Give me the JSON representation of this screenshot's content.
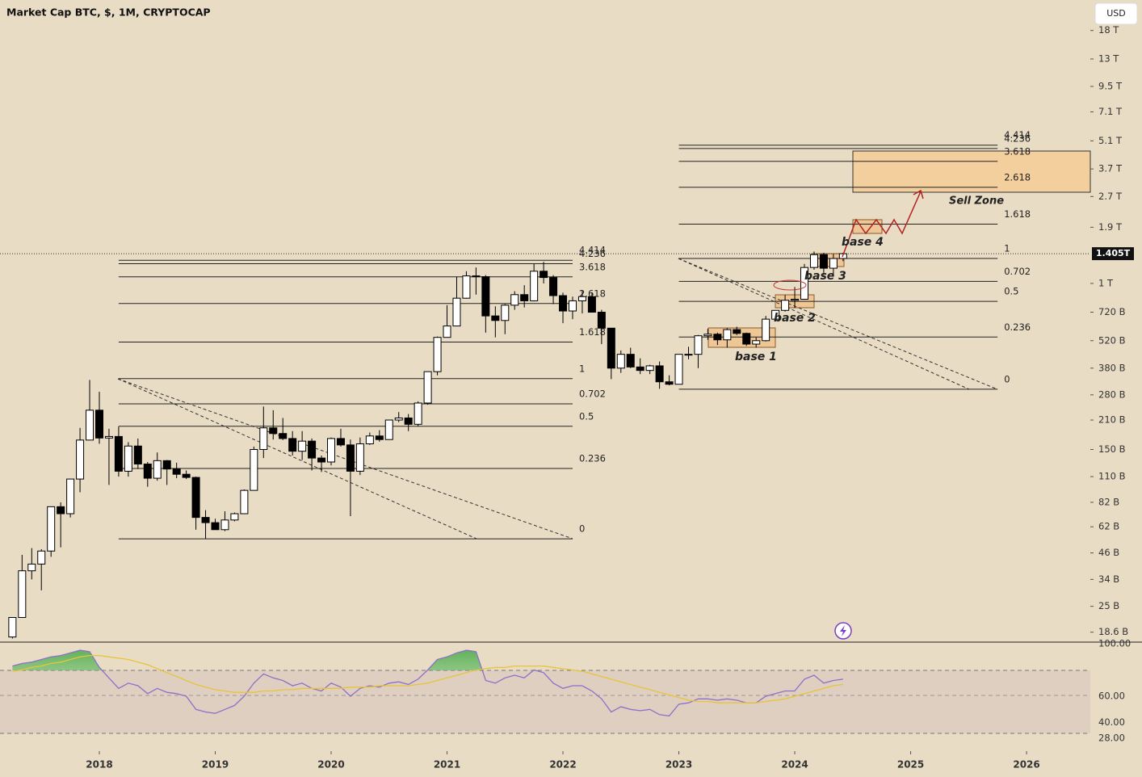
{
  "chart_data": [
    {
      "type": "candlestick",
      "title": "Market Cap BTC, $, 1M, CRYPTOCAP",
      "currency": "USD",
      "log_scale": true,
      "color_up": "#ffffff",
      "color_down": "#000000",
      "x": [
        "2017-04",
        "2017-05",
        "2017-06",
        "2017-07",
        "2017-08",
        "2017-09",
        "2017-10",
        "2017-11",
        "2017-12",
        "2018-01",
        "2018-02",
        "2018-03",
        "2018-04",
        "2018-05",
        "2018-06",
        "2018-07",
        "2018-08",
        "2018-09",
        "2018-10",
        "2018-11",
        "2018-12",
        "2019-01",
        "2019-02",
        "2019-03",
        "2019-04",
        "2019-05",
        "2019-06",
        "2019-07",
        "2019-08",
        "2019-09",
        "2019-10",
        "2019-11",
        "2019-12",
        "2020-01",
        "2020-02",
        "2020-03",
        "2020-04",
        "2020-05",
        "2020-06",
        "2020-07",
        "2020-08",
        "2020-09",
        "2020-10",
        "2020-11",
        "2020-12",
        "2021-01",
        "2021-02",
        "2021-03",
        "2021-04",
        "2021-05",
        "2021-06",
        "2021-07",
        "2021-08",
        "2021-09",
        "2021-10",
        "2021-11",
        "2021-12",
        "2022-01",
        "2022-02",
        "2022-03",
        "2022-04",
        "2022-05",
        "2022-06",
        "2022-07",
        "2022-08",
        "2022-09",
        "2022-10",
        "2022-11",
        "2022-12",
        "2023-01",
        "2023-02",
        "2023-03",
        "2023-04",
        "2023-05",
        "2023-06",
        "2023-07",
        "2023-08",
        "2023-09",
        "2023-10",
        "2023-11",
        "2023-12",
        "2024-01",
        "2024-02",
        "2024-03",
        "2024-04",
        "2024-05",
        "2024-06"
      ],
      "open": [
        17.6,
        22,
        37.5,
        40.5,
        47,
        78,
        72,
        107,
        167,
        235,
        171,
        174,
        117,
        156,
        127,
        108,
        132,
        120,
        113,
        109,
        69,
        65,
        60,
        67,
        72,
        94,
        150,
        192,
        180,
        170,
        147,
        165,
        136,
        130,
        170,
        158,
        117,
        160,
        175,
        168,
        210,
        215,
        200,
        255,
        365,
        540,
        615,
        845,
        1090,
        1080,
        690,
        655,
        780,
        880,
        820,
        1150,
        1070,
        870,
        730,
        820,
        860,
        720,
        600,
        380,
        445,
        385,
        370,
        390,
        325,
        316,
        445,
        445,
        550,
        560,
        525,
        590,
        565,
        500,
        520,
        665,
        735,
        825,
        835,
        1200,
        1390,
        1190,
        1330
      ],
      "high": [
        22,
        45,
        48.6,
        48,
        78,
        82,
        107,
        192,
        332,
        290,
        190,
        195,
        163,
        170,
        130,
        145,
        133,
        129,
        118,
        110,
        75,
        68,
        74,
        73,
        95,
        155,
        245,
        235,
        215,
        185,
        185,
        170,
        140,
        172,
        190,
        168,
        172,
        182,
        187,
        210,
        230,
        225,
        260,
        365,
        545,
        780,
        1080,
        1150,
        1200,
        1100,
        770,
        790,
        915,
        980,
        1250,
        1280,
        1100,
        900,
        860,
        920,
        900,
        740,
        600,
        465,
        480,
        425,
        395,
        410,
        350,
        445,
        485,
        555,
        595,
        570,
        600,
        610,
        570,
        540,
        690,
        735,
        875,
        960,
        1250,
        1440,
        1420,
        1400,
        1420
      ],
      "low": [
        17.3,
        22,
        34,
        30,
        44,
        49,
        69,
        92,
        167,
        160,
        100,
        110,
        110,
        120,
        98,
        105,
        100,
        108,
        107,
        60,
        54,
        60,
        59,
        66,
        72,
        94,
        136,
        168,
        167,
        140,
        133,
        118,
        116,
        125,
        155,
        70,
        112,
        158,
        164,
        168,
        205,
        185,
        195,
        250,
        350,
        540,
        615,
        840,
        880,
        570,
        540,
        560,
        740,
        760,
        815,
        1000,
        790,
        635,
        665,
        710,
        720,
        500,
        335,
        360,
        380,
        355,
        355,
        300,
        312,
        316,
        420,
        380,
        525,
        495,
        480,
        555,
        490,
        480,
        515,
        665,
        725,
        755,
        830,
        1170,
        1100,
        1100,
        1290
      ],
      "close": [
        22,
        37.5,
        40.5,
        47,
        78,
        72,
        107,
        167,
        235,
        171,
        174,
        117,
        156,
        127,
        108,
        132,
        120,
        113,
        109,
        69,
        65,
        60,
        67,
        72,
        94,
        150,
        192,
        180,
        170,
        147,
        165,
        136,
        130,
        170,
        158,
        117,
        160,
        175,
        168,
        210,
        215,
        200,
        255,
        365,
        540,
        615,
        845,
        1090,
        1080,
        690,
        655,
        780,
        880,
        820,
        1150,
        1070,
        870,
        730,
        820,
        860,
        720,
        600,
        380,
        445,
        385,
        370,
        390,
        325,
        316,
        445,
        445,
        550,
        560,
        525,
        590,
        565,
        500,
        520,
        665,
        735,
        825,
        835,
        1200,
        1390,
        1190,
        1330,
        1405
      ],
      "ylim": [
        16.6,
        25500
      ],
      "yticks": [
        {
          "value": 18000,
          "label": "18 T"
        },
        {
          "value": 13000,
          "label": "13 T"
        },
        {
          "value": 9500,
          "label": "9.5 T"
        },
        {
          "value": 7100,
          "label": "7.1 T"
        },
        {
          "value": 5100,
          "label": "5.1 T"
        },
        {
          "value": 3700,
          "label": "3.7 T"
        },
        {
          "value": 2700,
          "label": "2.7 T"
        },
        {
          "value": 1900,
          "label": "1.9 T"
        },
        {
          "value": 1000,
          "label": "1 T"
        },
        {
          "value": 720,
          "label": "720 B"
        },
        {
          "value": 520,
          "label": "520 B"
        },
        {
          "value": 380,
          "label": "380 B"
        },
        {
          "value": 280,
          "label": "280 B"
        },
        {
          "value": 210,
          "label": "210 B"
        },
        {
          "value": 150,
          "label": "150 B"
        },
        {
          "value": 110,
          "label": "110 B"
        },
        {
          "value": 82,
          "label": "82 B"
        },
        {
          "value": 62,
          "label": "62 B"
        },
        {
          "value": 46,
          "label": "46 B"
        },
        {
          "value": 34,
          "label": "34 B"
        },
        {
          "value": 25,
          "label": "25 B"
        },
        {
          "value": 18.6,
          "label": "18.6 B"
        }
      ],
      "xlim": [
        2017.143,
        2026.55
      ],
      "xticks": [
        2018,
        2019,
        2020,
        2021,
        2022,
        2023,
        2024,
        2025,
        2026
      ],
      "last_price": {
        "value": 1405,
        "label": "1.405T"
      },
      "fib_retracements": [
        {
          "levels": [
            0,
            0.236,
            0.5,
            0.702,
            1,
            1.618,
            2.618,
            3.618,
            4.236,
            4.414
          ],
          "price_0": 54,
          "price_1": 337,
          "x_start": "2018-03",
          "x_end": "2022-02"
        },
        {
          "levels": [
            0,
            0.236,
            0.5,
            0.702,
            1,
            1.618,
            2.618,
            3.618,
            4.236,
            4.414
          ],
          "price_0": 298.5,
          "price_1": 1331,
          "x_start": "2023-01",
          "x_end": "2025-10"
        }
      ],
      "annotations": [
        "Sell Zone",
        "base 1",
        "base 2",
        "base 3",
        "base 4"
      ]
    },
    {
      "type": "line",
      "ylim": [
        18.2,
        100
      ],
      "yticks": [
        {
          "value": 100,
          "label": "100.00"
        },
        {
          "value": 60,
          "label": "60.00"
        },
        {
          "value": 40,
          "label": "40.00"
        },
        {
          "value": 28,
          "label": "28.00"
        }
      ],
      "series": [
        {
          "color": "#8e6fc9",
          "values": [
            83,
            85,
            86,
            88,
            90,
            91,
            93,
            95,
            94,
            82,
            74,
            66,
            70,
            68,
            62,
            66,
            63,
            62,
            60,
            50,
            48,
            47,
            50,
            53,
            60,
            70,
            77,
            74,
            72,
            68,
            70,
            66,
            64,
            70,
            67,
            60,
            66,
            68,
            67,
            70,
            71,
            69,
            73,
            80,
            88,
            90,
            93,
            95,
            94,
            72,
            70,
            74,
            76,
            74,
            80,
            78,
            70,
            66,
            68,
            68,
            64,
            58,
            48,
            52,
            50,
            49,
            50,
            46,
            45,
            54,
            55,
            58,
            58,
            57,
            58,
            57,
            55,
            55,
            60,
            62,
            64,
            64,
            73,
            76,
            70,
            72,
            73
          ]
        },
        {
          "color": "#e8c43a",
          "values": [
            79,
            80,
            82,
            83,
            85,
            86,
            88,
            90,
            91,
            91,
            90,
            89,
            88,
            86,
            84,
            81,
            78,
            75,
            72,
            69,
            67,
            65,
            64,
            63,
            63,
            63,
            64,
            64,
            65,
            65,
            66,
            66,
            66,
            66,
            66,
            67,
            67,
            67,
            68,
            68,
            68,
            68,
            69,
            70,
            72,
            74,
            76,
            78,
            80,
            81,
            82,
            82,
            83,
            83,
            83,
            83,
            82,
            81,
            80,
            79,
            77,
            75,
            73,
            71,
            69,
            67,
            65,
            63,
            61,
            59,
            57,
            56,
            56,
            55,
            55,
            55,
            55,
            55,
            56,
            57,
            58,
            60,
            62,
            64,
            66,
            68,
            69
          ]
        }
      ]
    }
  ]
}
